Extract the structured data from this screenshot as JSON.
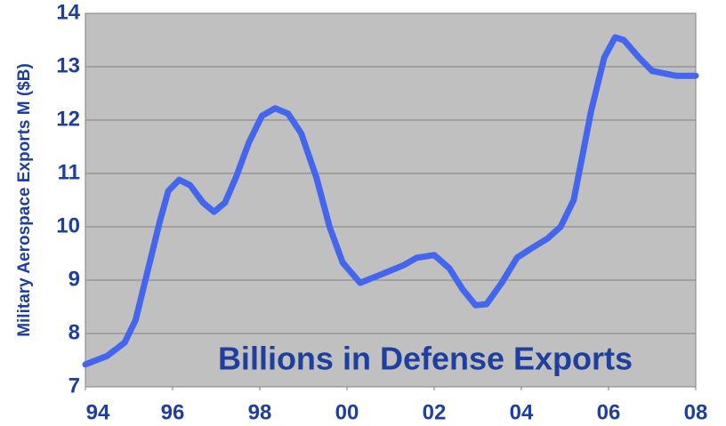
{
  "chart_data": {
    "type": "line",
    "y_label": "Military Aerospace Exports M ($B)",
    "annotation": "Billions in Defense Exports",
    "x": [
      1994.0,
      1994.5,
      1994.9,
      1995.15,
      1995.4,
      1995.7,
      1995.9,
      1996.15,
      1996.4,
      1996.7,
      1996.95,
      1997.2,
      1997.45,
      1997.75,
      1998.05,
      1998.35,
      1998.65,
      1998.95,
      1999.3,
      1999.6,
      1999.9,
      2000.3,
      2000.7,
      2001.3,
      2001.6,
      2002.0,
      2002.35,
      2002.65,
      2002.95,
      2003.2,
      2003.55,
      2003.9,
      2004.2,
      2004.6,
      2004.9,
      2005.2,
      2005.4,
      2005.6,
      2005.9,
      2006.15,
      2006.35,
      2006.7,
      2007.0,
      2007.55,
      2008.0
    ],
    "series": [
      {
        "color": "#4466ee",
        "values": [
          7.42,
          7.58,
          7.83,
          8.25,
          9.08,
          10.08,
          10.67,
          10.88,
          10.78,
          10.45,
          10.28,
          10.45,
          10.92,
          11.58,
          12.08,
          12.22,
          12.12,
          11.75,
          10.92,
          10.0,
          9.33,
          8.95,
          9.08,
          9.28,
          9.42,
          9.47,
          9.22,
          8.83,
          8.53,
          8.55,
          8.95,
          9.42,
          9.58,
          9.78,
          10.0,
          10.5,
          11.33,
          12.17,
          13.17,
          13.55,
          13.5,
          13.17,
          12.92,
          12.83,
          12.83
        ]
      }
    ],
    "xlim": [
      1994,
      2008
    ],
    "xticks": [
      {
        "value": 1994,
        "label": "94"
      },
      {
        "value": 1996,
        "label": "96"
      },
      {
        "value": 1998,
        "label": "98"
      },
      {
        "value": 2000,
        "label": "00"
      },
      {
        "value": 2002,
        "label": "02"
      },
      {
        "value": 2004,
        "label": "04"
      },
      {
        "value": 2006,
        "label": "06"
      },
      {
        "value": 2008,
        "label": "08"
      }
    ],
    "ylim": [
      7,
      14
    ],
    "yticks": [
      7,
      8,
      9,
      10,
      11,
      12,
      13,
      14
    ],
    "grid": true,
    "background": "#c0c0c0"
  }
}
